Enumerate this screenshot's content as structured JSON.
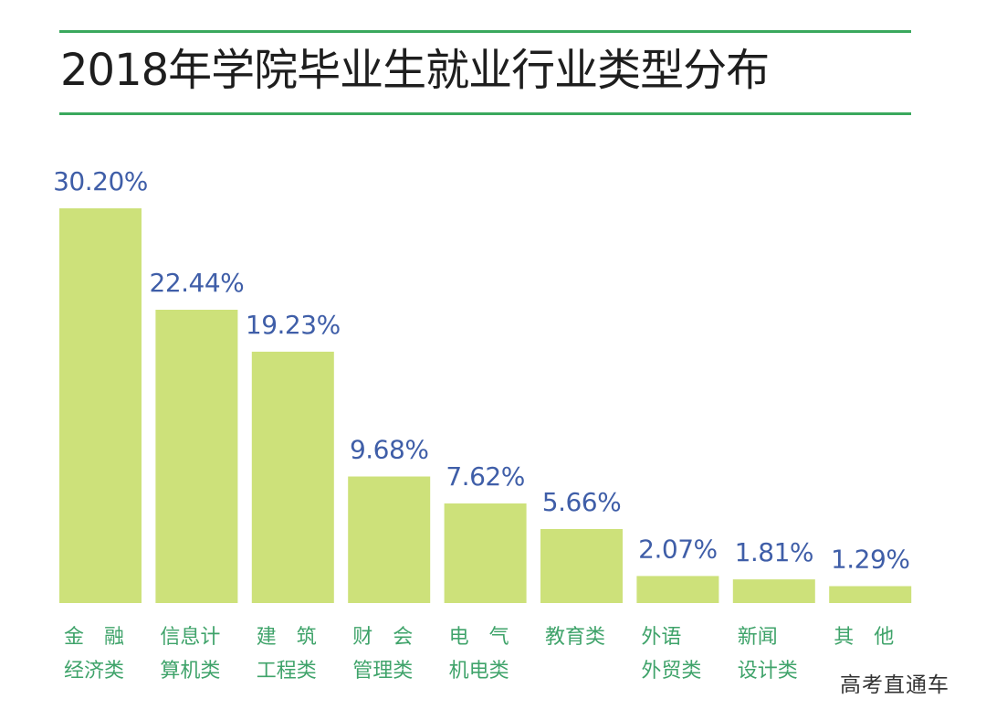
{
  "title": "2018年学院毕业生就业行业类型分布",
  "watermark": "高考直通车",
  "colors": {
    "bar": "#cde17a",
    "value_label": "#3f5ea8",
    "category_label": "#3fa36a",
    "rule": "#3aa85d"
  },
  "chart_data": {
    "type": "bar",
    "title": "2018年学院毕业生就业行业类型分布",
    "xlabel": "",
    "ylabel": "",
    "grid": false,
    "legend": "none",
    "ylim": [
      0,
      30.2
    ],
    "categories": [
      [
        "金　融",
        "经济类"
      ],
      [
        "信息计",
        "算机类"
      ],
      [
        "建　筑",
        "工程类"
      ],
      [
        "财　会",
        "管理类"
      ],
      [
        "电　气",
        "机电类"
      ],
      [
        "教育类"
      ],
      [
        "外语",
        "外贸类"
      ],
      [
        "新闻",
        "设计类"
      ],
      [
        "其　他"
      ]
    ],
    "values": [
      30.2,
      22.44,
      19.23,
      9.68,
      7.62,
      5.66,
      2.07,
      1.81,
      1.29
    ],
    "value_labels": [
      "30.20%",
      "22.44%",
      "19.23%",
      "9.68%",
      "7.62%",
      "5.66%",
      "2.07%",
      "1.81%",
      "1.29%"
    ]
  }
}
